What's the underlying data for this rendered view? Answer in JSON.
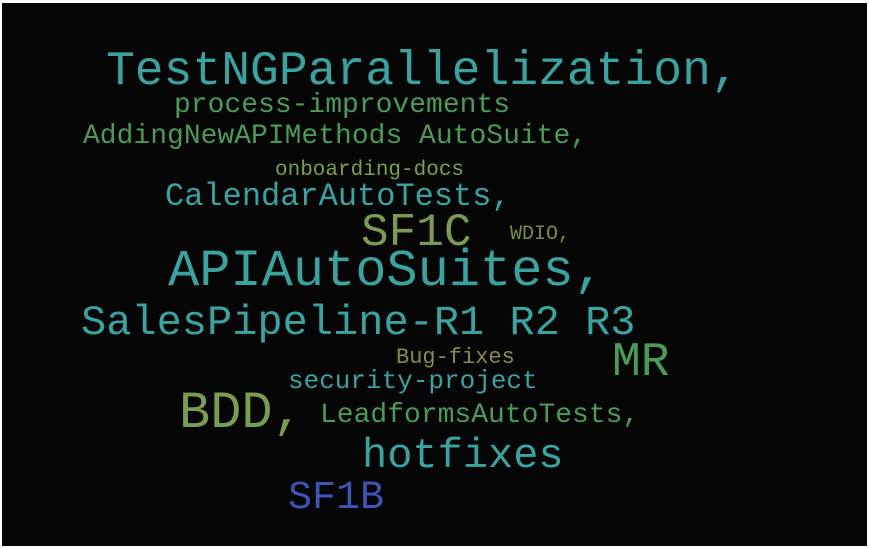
{
  "cloud": {
    "background": "#050505",
    "words": [
      {
        "id": "w1",
        "text": "TestNGParallelization,",
        "color": "#3aa3a0"
      },
      {
        "id": "w2",
        "text": "process-improvements",
        "color": "#4b9a57"
      },
      {
        "id": "w3",
        "text": "AddingNewAPIMethods AutoSuite,",
        "color": "#4b9a57"
      },
      {
        "id": "w4",
        "text": "onboarding-docs",
        "color": "#7b9f4a"
      },
      {
        "id": "w5",
        "text": "CalendarAutoTests,",
        "color": "#3aa3a0"
      },
      {
        "id": "w6",
        "text": "SF1C",
        "color": "#7c9b52"
      },
      {
        "id": "w7",
        "text": "WDIO,",
        "color": "#7c8b45"
      },
      {
        "id": "w8",
        "text": "APIAutoSuites,",
        "color": "#3aa3a0"
      },
      {
        "id": "w9",
        "text": "SalesPipeline-R1 R2 R3",
        "color": "#3aa3a0"
      },
      {
        "id": "w10",
        "text": "Bug-fixes",
        "color": "#8a8b4a"
      },
      {
        "id": "w11",
        "text": "MR",
        "color": "#4b9a57"
      },
      {
        "id": "w12",
        "text": "security-project",
        "color": "#3aa3a0"
      },
      {
        "id": "w13",
        "text": "BDD,",
        "color": "#7c9b52"
      },
      {
        "id": "w14",
        "text": "LeadformsAutoTests,",
        "color": "#4b9a57"
      },
      {
        "id": "w15",
        "text": "hotfixes",
        "color": "#3aa3a0"
      },
      {
        "id": "w16",
        "text": "SF1B",
        "color": "#3d55b3"
      }
    ]
  }
}
